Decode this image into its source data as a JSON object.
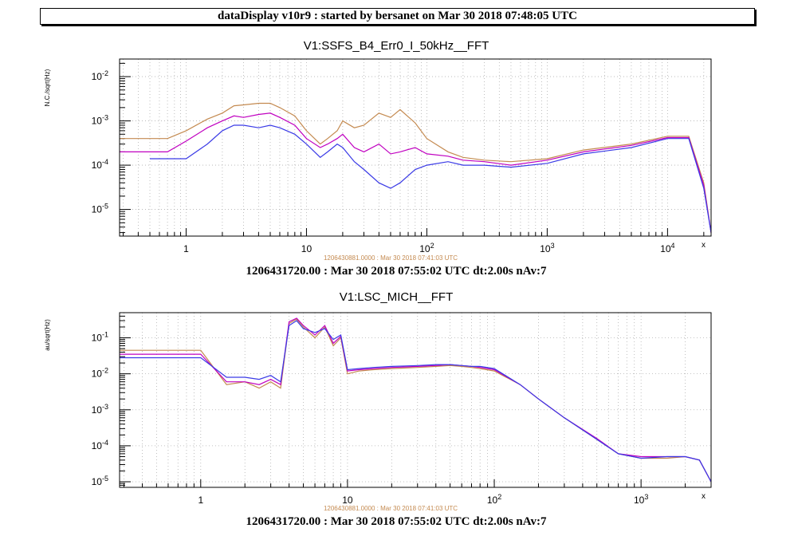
{
  "window_title": "dataDisplay v10r9 : started by bersanet on Mar 30 2018 07:48:05 UTC",
  "chart_data": [
    {
      "type": "line",
      "title": "V1:SSFS_B4_Err0_I_50kHz__FFT",
      "ylabel": "N.C./sqrt(Hz)",
      "xscale": "log",
      "yscale": "log",
      "xlim": [
        0.28,
        23000
      ],
      "ylim": [
        2.5e-06,
        0.025
      ],
      "grid": true,
      "x_ticks": [
        "1",
        "10",
        "10^2",
        "10^3",
        "10^4"
      ],
      "x_tick_values": [
        1,
        10,
        100,
        1000,
        10000
      ],
      "y_ticks": [
        "10^-5",
        "10^-4",
        "10^-3",
        "10^-2"
      ],
      "y_tick_values": [
        1e-05,
        0.0001,
        0.001,
        0.01
      ],
      "axis_corner_label": "x",
      "reference_label": "1206430881.0000 : Mar 30 2018 07:41:03 UTC",
      "footer": "1206431720.00 : Mar 30 2018 07:55:02 UTC dt:2.00s nAv:7",
      "series": [
        {
          "color": "#c48a50",
          "x": [
            0.28,
            0.7,
            1.0,
            1.5,
            2.0,
            2.5,
            3.0,
            4.0,
            5.0,
            6.0,
            8.0,
            10,
            13,
            15,
            18,
            20,
            25,
            30,
            40,
            50,
            60,
            80,
            100,
            150,
            200,
            300,
            500,
            1000,
            2000,
            5000,
            10000,
            15000,
            20000,
            23000
          ],
          "y": [
            0.0004,
            0.0004,
            0.0006,
            0.0011,
            0.0015,
            0.0022,
            0.0023,
            0.0025,
            0.0025,
            0.002,
            0.0013,
            0.0006,
            0.0003,
            0.0004,
            0.0006,
            0.001,
            0.0007,
            0.0008,
            0.0015,
            0.0012,
            0.0018,
            0.0009,
            0.0004,
            0.0002,
            0.00015,
            0.00013,
            0.00012,
            0.00014,
            0.00022,
            0.0003,
            0.00045,
            0.00045,
            4e-05,
            3e-06
          ]
        },
        {
          "color": "#c000c0",
          "x": [
            0.28,
            0.7,
            1.0,
            1.5,
            2.0,
            2.5,
            3.0,
            4.0,
            5.0,
            6.0,
            8.0,
            10,
            13,
            15,
            18,
            20,
            25,
            30,
            40,
            50,
            60,
            80,
            100,
            150,
            200,
            300,
            500,
            1000,
            2000,
            5000,
            10000,
            15000,
            20000,
            23000
          ],
          "y": [
            0.0002,
            0.0002,
            0.00035,
            0.0007,
            0.001,
            0.0013,
            0.0012,
            0.0014,
            0.0015,
            0.0012,
            0.0008,
            0.0004,
            0.00025,
            0.0003,
            0.0004,
            0.0005,
            0.00025,
            0.0002,
            0.0003,
            0.00018,
            0.0002,
            0.00025,
            0.00018,
            0.00016,
            0.00013,
            0.00012,
            0.0001,
            0.00013,
            0.0002,
            0.00028,
            0.00042,
            0.00042,
            3.5e-05,
            3e-06
          ]
        },
        {
          "color": "#3a3ae6",
          "x": [
            0.5,
            1.0,
            1.5,
            2.0,
            2.5,
            3.0,
            4.0,
            5.0,
            6.0,
            8.0,
            10,
            13,
            15,
            18,
            20,
            25,
            30,
            40,
            50,
            60,
            80,
            100,
            150,
            200,
            300,
            500,
            1000,
            2000,
            5000,
            10000,
            15000,
            20000,
            23000
          ],
          "y": [
            0.00014,
            0.00014,
            0.0003,
            0.0006,
            0.0008,
            0.0008,
            0.0007,
            0.0008,
            0.0007,
            0.0005,
            0.0003,
            0.00015,
            0.0002,
            0.0003,
            0.00025,
            0.00012,
            8e-05,
            4e-05,
            3e-05,
            4e-05,
            8e-05,
            0.0001,
            0.00012,
            0.0001,
            0.0001,
            9e-05,
            0.00011,
            0.00018,
            0.00025,
            0.0004,
            0.0004,
            3e-05,
            3e-06
          ]
        }
      ]
    },
    {
      "type": "line",
      "title": "V1:LSC_MICH__FFT",
      "ylabel": "au/sqrt(Hz)",
      "xscale": "log",
      "yscale": "log",
      "xlim": [
        0.28,
        3000
      ],
      "ylim": [
        7e-06,
        0.5
      ],
      "grid": true,
      "x_ticks": [
        "1",
        "10",
        "10^2",
        "10^3"
      ],
      "x_tick_values": [
        1,
        10,
        100,
        1000
      ],
      "y_ticks": [
        "10^-5",
        "10^-4",
        "10^-3",
        "10^-2",
        "10^-1"
      ],
      "y_tick_values": [
        1e-05,
        0.0001,
        0.001,
        0.01,
        0.1
      ],
      "axis_corner_label": "x",
      "reference_label": "1206430881.0000 : Mar 30 2018 07:41:03 UTC",
      "footer": "1206431720.00 : Mar 30 2018 07:55:02 UTC dt:2.00s nAv:7",
      "series": [
        {
          "color": "#c48a50",
          "x": [
            0.28,
            1.0,
            1.5,
            2.0,
            2.5,
            3.0,
            3.5,
            4.0,
            4.5,
            5.0,
            6.0,
            7.0,
            8.0,
            9.0,
            10,
            12,
            15,
            20,
            30,
            40,
            50,
            60,
            70,
            80,
            100,
            150,
            200,
            300,
            500,
            700,
            1000,
            1500,
            2000,
            2500,
            3000
          ],
          "y": [
            0.045,
            0.045,
            0.005,
            0.006,
            0.004,
            0.006,
            0.004,
            0.25,
            0.33,
            0.2,
            0.1,
            0.2,
            0.06,
            0.1,
            0.01,
            0.012,
            0.013,
            0.014,
            0.015,
            0.016,
            0.017,
            0.016,
            0.015,
            0.014,
            0.012,
            0.005,
            0.002,
            0.0006,
            0.00015,
            6e-05,
            4.5e-05,
            4.5e-05,
            5e-05,
            4e-05,
            1e-05
          ]
        },
        {
          "color": "#c000c0",
          "x": [
            0.28,
            1.0,
            1.5,
            2.0,
            2.5,
            3.0,
            3.5,
            4.0,
            4.5,
            5.0,
            6.0,
            7.0,
            8.0,
            9.0,
            10,
            12,
            15,
            20,
            30,
            40,
            50,
            60,
            70,
            80,
            100,
            150,
            200,
            300,
            500,
            700,
            1000,
            1500,
            2000,
            2500,
            3000
          ],
          "y": [
            0.035,
            0.035,
            0.006,
            0.006,
            0.005,
            0.007,
            0.005,
            0.28,
            0.35,
            0.22,
            0.12,
            0.22,
            0.07,
            0.11,
            0.012,
            0.013,
            0.014,
            0.015,
            0.016,
            0.017,
            0.018,
            0.017,
            0.016,
            0.015,
            0.013,
            0.005,
            0.002,
            0.0006,
            0.00016,
            6e-05,
            5e-05,
            5e-05,
            5e-05,
            4e-05,
            1e-05
          ]
        },
        {
          "color": "#3a3ae6",
          "x": [
            0.28,
            1.0,
            1.5,
            2.0,
            2.5,
            3.0,
            3.5,
            4.0,
            4.5,
            5.0,
            6.0,
            7.0,
            8.0,
            9.0,
            10,
            12,
            15,
            20,
            30,
            40,
            50,
            60,
            70,
            80,
            100,
            150,
            200,
            300,
            500,
            700,
            1000,
            1500,
            2000,
            2500,
            3000
          ],
          "y": [
            0.028,
            0.028,
            0.008,
            0.008,
            0.007,
            0.009,
            0.006,
            0.22,
            0.3,
            0.18,
            0.14,
            0.18,
            0.09,
            0.12,
            0.013,
            0.014,
            0.015,
            0.016,
            0.017,
            0.018,
            0.018,
            0.017,
            0.016,
            0.016,
            0.014,
            0.005,
            0.002,
            0.0006,
            0.00015,
            6e-05,
            4.5e-05,
            5e-05,
            5e-05,
            4e-05,
            1e-05
          ]
        }
      ]
    }
  ]
}
